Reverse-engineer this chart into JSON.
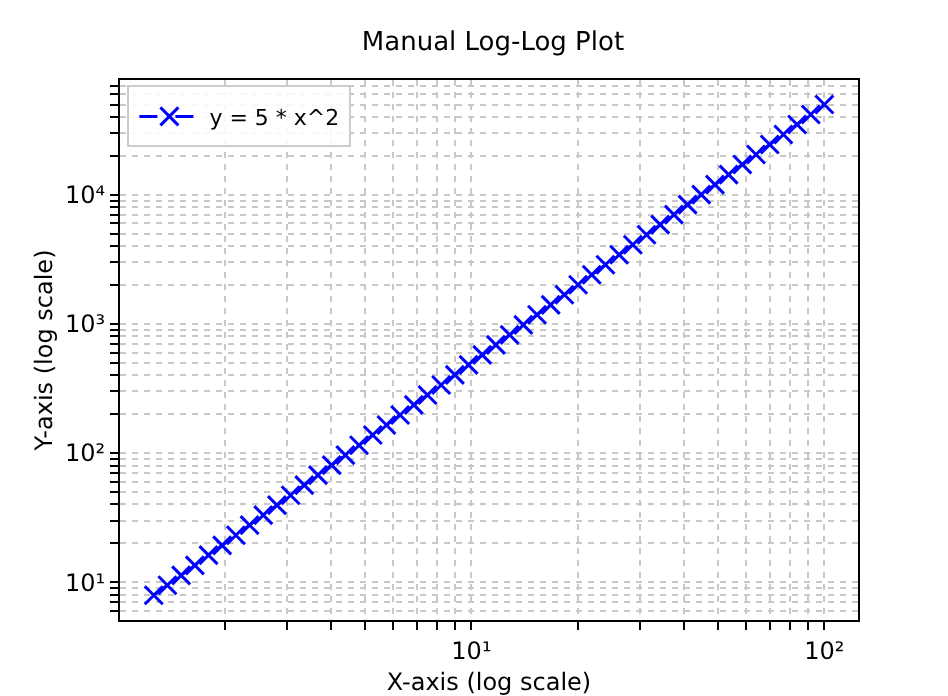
{
  "chart_data": {
    "type": "line",
    "title": "Manual Log-Log Plot",
    "xlabel": "X-axis (log scale)",
    "ylabel": "Y-axis (log scale)",
    "x": [
      1.259,
      1.376,
      1.505,
      1.646,
      1.799,
      1.967,
      2.151,
      2.352,
      2.572,
      2.812,
      3.074,
      3.361,
      3.675,
      4.018,
      4.394,
      4.804,
      5.253,
      5.743,
      6.28,
      6.866,
      7.507,
      8.209,
      8.975,
      9.814,
      10.73,
      11.73,
      12.83,
      14.03,
      15.34,
      16.77,
      18.34,
      20.05,
      21.92,
      23.97,
      26.21,
      28.66,
      31.33,
      34.26,
      37.46,
      40.96,
      44.79,
      48.97,
      53.54,
      58.55,
      64.01,
      69.99,
      76.53,
      83.68,
      91.49,
      100
    ],
    "series": [
      {
        "name": "y = 5 * x^2",
        "color": "#0000ff",
        "values": [
          7.93,
          9.47,
          11.3,
          13.5,
          16.2,
          19.3,
          23.1,
          27.7,
          33.1,
          39.5,
          47.2,
          56.5,
          67.5,
          80.7,
          96.5,
          115,
          138,
          165,
          197,
          236,
          282,
          337,
          403,
          482,
          576,
          688,
          823,
          984,
          1177,
          1406,
          1682,
          2010,
          2402,
          2873,
          3435,
          4107,
          4908,
          5869,
          7016,
          8389,
          10031,
          11990,
          14332,
          17141,
          20486,
          24493,
          29284,
          35011,
          41852,
          50000
        ]
      }
    ],
    "log": "xy",
    "xlim": [
      1.01,
      124.5
    ],
    "ylim": [
      5.1,
      77400
    ],
    "xticks": [
      {
        "value": 2,
        "label": null
      },
      {
        "value": 3,
        "label": null
      },
      {
        "value": 4,
        "label": null
      },
      {
        "value": 5,
        "label": null
      },
      {
        "value": 6,
        "label": null
      },
      {
        "value": 7,
        "label": null
      },
      {
        "value": 8,
        "label": null
      },
      {
        "value": 9,
        "label": null
      },
      {
        "value": 10,
        "label": "10¹"
      },
      {
        "value": 20,
        "label": null
      },
      {
        "value": 30,
        "label": null
      },
      {
        "value": 40,
        "label": null
      },
      {
        "value": 50,
        "label": null
      },
      {
        "value": 60,
        "label": null
      },
      {
        "value": 70,
        "label": null
      },
      {
        "value": 80,
        "label": null
      },
      {
        "value": 90,
        "label": null
      },
      {
        "value": 100,
        "label": "10²"
      }
    ],
    "yticks": [
      {
        "value": 6,
        "label": null
      },
      {
        "value": 7,
        "label": null
      },
      {
        "value": 8,
        "label": null
      },
      {
        "value": 9,
        "label": null
      },
      {
        "value": 10,
        "label": "10¹"
      },
      {
        "value": 20,
        "label": null
      },
      {
        "value": 30,
        "label": null
      },
      {
        "value": 40,
        "label": null
      },
      {
        "value": 50,
        "label": null
      },
      {
        "value": 60,
        "label": null
      },
      {
        "value": 70,
        "label": null
      },
      {
        "value": 80,
        "label": null
      },
      {
        "value": 90,
        "label": null
      },
      {
        "value": 100,
        "label": "10²"
      },
      {
        "value": 200,
        "label": null
      },
      {
        "value": 300,
        "label": null
      },
      {
        "value": 400,
        "label": null
      },
      {
        "value": 500,
        "label": null
      },
      {
        "value": 600,
        "label": null
      },
      {
        "value": 700,
        "label": null
      },
      {
        "value": 800,
        "label": null
      },
      {
        "value": 900,
        "label": null
      },
      {
        "value": 1000,
        "label": "10³"
      },
      {
        "value": 2000,
        "label": null
      },
      {
        "value": 3000,
        "label": null
      },
      {
        "value": 4000,
        "label": null
      },
      {
        "value": 5000,
        "label": null
      },
      {
        "value": 6000,
        "label": null
      },
      {
        "value": 7000,
        "label": null
      },
      {
        "value": 8000,
        "label": null
      },
      {
        "value": 9000,
        "label": null
      },
      {
        "value": 10000,
        "label": "10⁴"
      },
      {
        "value": 20000,
        "label": null
      },
      {
        "value": 30000,
        "label": null
      },
      {
        "value": 40000,
        "label": null
      },
      {
        "value": 50000,
        "label": null
      },
      {
        "value": 60000,
        "label": null
      },
      {
        "value": 70000,
        "label": null
      }
    ],
    "grid": true,
    "legend": "top left",
    "marker": "cross",
    "line_style": "dashed"
  }
}
